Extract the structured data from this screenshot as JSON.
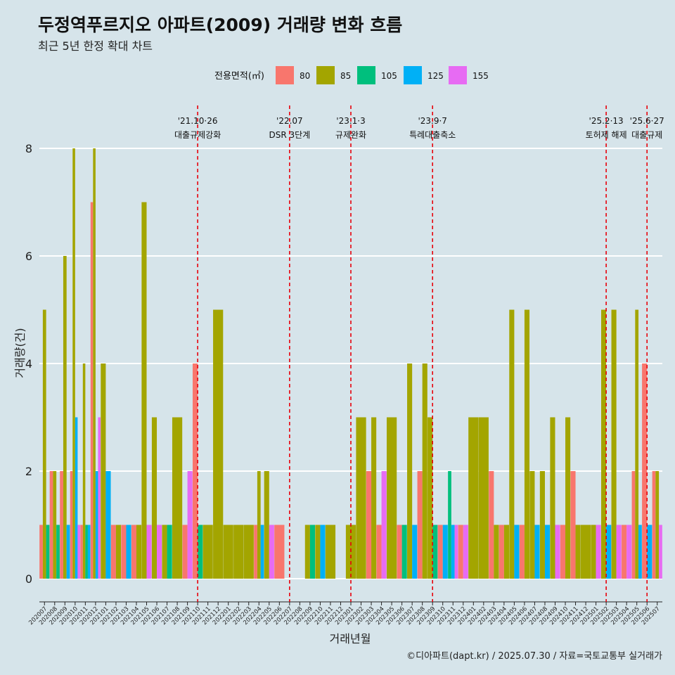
{
  "title": "두정역푸르지오 아파트(2009) 거래량 변화 흐름",
  "subtitle": "최근 5년 한정 확대 차트",
  "caption": "©디아파트(dapt.kr) / 2025.07.30 / 자료=국토교통부 실거래가",
  "chart_data": {
    "type": "bar",
    "xlabel": "거래년월",
    "ylabel": "거래량(건)",
    "ylim": [
      0,
      8
    ],
    "yticks": [
      0,
      2,
      4,
      6,
      8
    ],
    "grid": "horizontal",
    "legend_position": "top",
    "legend_title": "전용면적(㎡)",
    "series": [
      {
        "name": "80",
        "color": "#f8766d"
      },
      {
        "name": "85",
        "color": "#a3a500"
      },
      {
        "name": "105",
        "color": "#00bf7d"
      },
      {
        "name": "125",
        "color": "#00b0f6"
      },
      {
        "name": "155",
        "color": "#e76bf3"
      }
    ],
    "months": [
      "202007",
      "202008",
      "202009",
      "202010",
      "202011",
      "202012",
      "202101",
      "202102",
      "202103",
      "202104",
      "202105",
      "202106",
      "202107",
      "202108",
      "202109",
      "202110",
      "202111",
      "202112",
      "202201",
      "202202",
      "202203",
      "202204",
      "202205",
      "202206",
      "202207",
      "202208",
      "202209",
      "202210",
      "202211",
      "202212",
      "202301",
      "202302",
      "202303",
      "202304",
      "202305",
      "202306",
      "202307",
      "202308",
      "202309",
      "202310",
      "202311",
      "202312",
      "202401",
      "202402",
      "202403",
      "202404",
      "202405",
      "202406",
      "202407",
      "202408",
      "202409",
      "202410",
      "202411",
      "202412",
      "202501",
      "202502",
      "202503",
      "202504",
      "202505",
      "202506",
      "202507"
    ],
    "bars": [
      {
        "month": "202007",
        "values": {
          "80": 1,
          "85": 5,
          "105": 1
        }
      },
      {
        "month": "202008",
        "values": {
          "80": 2,
          "85": 2,
          "105": 1
        }
      },
      {
        "month": "202009",
        "values": {
          "80": 2,
          "85": 6,
          "125": 1
        }
      },
      {
        "month": "202010",
        "values": {
          "80": 2,
          "85": 8,
          "125": 3,
          "155": 1
        }
      },
      {
        "month": "202011",
        "values": {
          "80": 1,
          "85": 4,
          "105": 1,
          "125": 1
        }
      },
      {
        "month": "202012",
        "values": {
          "80": 7,
          "85": 8,
          "125": 2,
          "155": 3
        }
      },
      {
        "month": "202101",
        "values": {
          "85": 4,
          "125": 2
        }
      },
      {
        "month": "202102",
        "values": {
          "80": 1,
          "85": 1
        }
      },
      {
        "month": "202103",
        "values": {
          "80": 1,
          "125": 1
        }
      },
      {
        "month": "202104",
        "values": {
          "80": 1,
          "85": 1
        }
      },
      {
        "month": "202105",
        "values": {
          "85": 7,
          "155": 1
        }
      },
      {
        "month": "202106",
        "values": {
          "85": 3,
          "155": 1
        }
      },
      {
        "month": "202107",
        "values": {
          "85": 1,
          "105": 1
        }
      },
      {
        "month": "202108",
        "values": {
          "85": 3
        }
      },
      {
        "month": "202109",
        "values": {
          "80": 1,
          "155": 2
        }
      },
      {
        "month": "202110",
        "values": {
          "80": 4,
          "105": 1
        }
      },
      {
        "month": "202111",
        "values": {
          "85": 1
        }
      },
      {
        "month": "202112",
        "values": {
          "85": 5
        }
      },
      {
        "month": "202201",
        "values": {
          "85": 1
        }
      },
      {
        "month": "202202",
        "values": {
          "85": 1
        }
      },
      {
        "month": "202203",
        "values": {
          "85": 1
        }
      },
      {
        "month": "202204",
        "values": {
          "80": 1,
          "85": 2,
          "125": 1
        }
      },
      {
        "month": "202205",
        "values": {
          "85": 2,
          "155": 1
        }
      },
      {
        "month": "202206",
        "values": {
          "80": 1
        }
      },
      {
        "month": "202207",
        "values": {}
      },
      {
        "month": "202208",
        "values": {}
      },
      {
        "month": "202209",
        "values": {
          "85": 1,
          "105": 1
        }
      },
      {
        "month": "202210",
        "values": {
          "85": 1,
          "125": 1
        }
      },
      {
        "month": "202211",
        "values": {
          "85": 1
        }
      },
      {
        "month": "202212",
        "values": {}
      },
      {
        "month": "202301",
        "values": {
          "85": 1
        }
      },
      {
        "month": "202302",
        "values": {
          "85": 3
        }
      },
      {
        "month": "202303",
        "values": {
          "80": 2,
          "85": 3
        }
      },
      {
        "month": "202304",
        "values": {
          "80": 1,
          "155": 2
        }
      },
      {
        "month": "202305",
        "values": {
          "85": 3
        }
      },
      {
        "month": "202306",
        "values": {
          "80": 1,
          "105": 1
        }
      },
      {
        "month": "202307",
        "values": {
          "85": 4,
          "125": 1
        }
      },
      {
        "month": "202308",
        "values": {
          "80": 2,
          "85": 4
        }
      },
      {
        "month": "202309",
        "values": {
          "85": 3,
          "105": 1
        }
      },
      {
        "month": "202310",
        "values": {
          "80": 1,
          "125": 1
        }
      },
      {
        "month": "202311",
        "values": {
          "105": 2,
          "125": 1,
          "155": 1
        }
      },
      {
        "month": "202312",
        "values": {
          "80": 1,
          "155": 1
        }
      },
      {
        "month": "202401",
        "values": {
          "85": 3
        }
      },
      {
        "month": "202402",
        "values": {
          "85": 3
        }
      },
      {
        "month": "202403",
        "values": {
          "80": 2,
          "85": 1
        }
      },
      {
        "month": "202404",
        "values": {
          "80": 1,
          "85": 1
        }
      },
      {
        "month": "202405",
        "values": {
          "85": 5,
          "125": 1
        }
      },
      {
        "month": "202406",
        "values": {
          "80": 1,
          "85": 5
        }
      },
      {
        "month": "202407",
        "values": {
          "85": 2,
          "125": 1
        }
      },
      {
        "month": "202408",
        "values": {
          "85": 2,
          "125": 1
        }
      },
      {
        "month": "202409",
        "values": {
          "85": 3,
          "155": 1
        }
      },
      {
        "month": "202410",
        "values": {
          "80": 1,
          "85": 3
        }
      },
      {
        "month": "202411",
        "values": {
          "80": 2,
          "85": 1
        }
      },
      {
        "month": "202412",
        "values": {
          "85": 1
        }
      },
      {
        "month": "202501",
        "values": {
          "85": 1,
          "155": 1
        }
      },
      {
        "month": "202502",
        "values": {
          "85": 5,
          "125": 1
        }
      },
      {
        "month": "202503",
        "values": {
          "85": 5,
          "155": 1
        }
      },
      {
        "month": "202504",
        "values": {
          "80": 1,
          "155": 1
        }
      },
      {
        "month": "202505",
        "values": {
          "80": 2,
          "85": 5,
          "125": 1
        }
      },
      {
        "month": "202506",
        "values": {
          "80": 4,
          "125": 1
        }
      },
      {
        "month": "202507",
        "values": {
          "80": 2,
          "85": 2,
          "155": 1
        }
      }
    ],
    "events": [
      {
        "month": "202110",
        "date": "'21.10·26",
        "label": "대출규제강화"
      },
      {
        "month": "202207",
        "date": "'22.07",
        "label": "DSR 3단계"
      },
      {
        "month": "202301",
        "date": "'23.1·3",
        "label": "규제완화"
      },
      {
        "month": "202309",
        "date": "'23.9·7",
        "label": "특례대출축소"
      },
      {
        "month": "202502",
        "date": "'25.2·13",
        "label": "토허제 해제"
      },
      {
        "month": "202506",
        "date": "'25.6·27",
        "label": "대출규제"
      }
    ]
  }
}
